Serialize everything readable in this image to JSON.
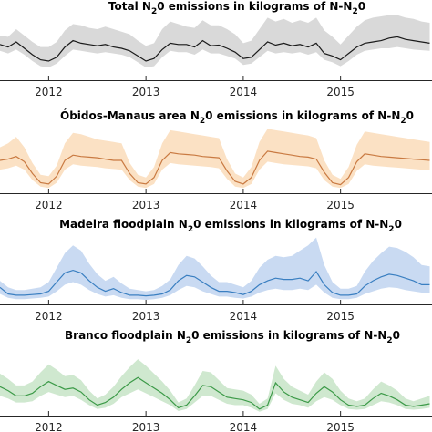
{
  "figure": {
    "panels": [
      {
        "title_pre": "Total N",
        "title_sub1": "2",
        "title_mid": "0 emissions in kilograms of N-N",
        "title_sub2": "2",
        "title_post": "0"
      },
      {
        "title_pre": "Óbidos-Manaus area N",
        "title_sub1": "2",
        "title_mid": "0 emissions in kilograms of N-N",
        "title_sub2": "2",
        "title_post": "0"
      },
      {
        "title_pre": "Madeira floodplain N",
        "title_sub1": "2",
        "title_mid": "0 emissions in kilograms of N-N",
        "title_sub2": "2",
        "title_post": "0"
      },
      {
        "title_pre": "Branco floodplain N",
        "title_sub1": "2",
        "title_mid": "0 emissions in kilograms of N-N",
        "title_sub2": "2",
        "title_post": "0"
      }
    ]
  },
  "chart_data": [
    {
      "type": "line",
      "title": "Total N20 emissions in kilograms of N-N20",
      "x_ticks": [
        "2012",
        "2013",
        "2014",
        "2015"
      ],
      "x": [
        2011.5,
        2011.583,
        2011.667,
        2011.75,
        2011.833,
        2011.917,
        2012.0,
        2012.083,
        2012.167,
        2012.25,
        2012.333,
        2012.417,
        2012.5,
        2012.583,
        2012.667,
        2012.75,
        2012.833,
        2012.917,
        2013.0,
        2013.083,
        2013.167,
        2013.25,
        2013.333,
        2013.417,
        2013.5,
        2013.583,
        2013.667,
        2013.75,
        2013.833,
        2013.917,
        2014.0,
        2014.083,
        2014.167,
        2014.25,
        2014.333,
        2014.417,
        2014.5,
        2014.583,
        2014.667,
        2014.75,
        2014.833,
        2014.917,
        2015.0,
        2015.083,
        2015.167,
        2015.25,
        2015.333,
        2015.417,
        2015.5,
        2015.583,
        2015.667,
        2015.75,
        2015.833,
        2015.917
      ],
      "ylim": [
        0,
        1
      ],
      "color": "#1a1a1a",
      "band_color": "#d9d9d9",
      "series": [
        {
          "mean": [
            0.56,
            0.52,
            0.6,
            0.5,
            0.4,
            0.32,
            0.3,
            0.36,
            0.52,
            0.62,
            0.58,
            0.56,
            0.54,
            0.56,
            0.52,
            0.5,
            0.46,
            0.38,
            0.3,
            0.34,
            0.48,
            0.58,
            0.56,
            0.56,
            0.52,
            0.62,
            0.54,
            0.55,
            0.5,
            0.44,
            0.34,
            0.36,
            0.48,
            0.6,
            0.55,
            0.58,
            0.54,
            0.56,
            0.52,
            0.58,
            0.42,
            0.38,
            0.32,
            0.42,
            0.52,
            0.58,
            0.6,
            0.62,
            0.66,
            0.68,
            0.64,
            0.62,
            0.6,
            0.58
          ],
          "lower": [
            0.46,
            0.42,
            0.48,
            0.4,
            0.3,
            0.22,
            0.2,
            0.26,
            0.38,
            0.48,
            0.46,
            0.44,
            0.42,
            0.44,
            0.42,
            0.4,
            0.36,
            0.28,
            0.2,
            0.22,
            0.36,
            0.46,
            0.44,
            0.44,
            0.4,
            0.48,
            0.42,
            0.42,
            0.38,
            0.34,
            0.24,
            0.26,
            0.36,
            0.46,
            0.42,
            0.44,
            0.42,
            0.44,
            0.4,
            0.44,
            0.32,
            0.28,
            0.22,
            0.3,
            0.4,
            0.46,
            0.48,
            0.5,
            0.5,
            0.52,
            0.5,
            0.48,
            0.47,
            0.46
          ],
          "upper": [
            0.7,
            0.68,
            0.8,
            0.7,
            0.6,
            0.52,
            0.52,
            0.6,
            0.78,
            0.88,
            0.86,
            0.82,
            0.8,
            0.84,
            0.8,
            0.76,
            0.72,
            0.62,
            0.54,
            0.58,
            0.8,
            0.92,
            0.88,
            0.84,
            0.82,
            0.94,
            0.86,
            0.86,
            0.8,
            0.72,
            0.58,
            0.62,
            0.8,
            0.98,
            0.92,
            0.96,
            0.9,
            0.94,
            0.9,
            0.98,
            0.78,
            0.68,
            0.56,
            0.7,
            0.84,
            0.94,
            0.98,
            1.0,
            1.02,
            1.02,
            0.98,
            0.96,
            0.92,
            0.9
          ]
        }
      ]
    },
    {
      "type": "line",
      "title": "Óbidos-Manaus area N20 emissions in kilograms of N-N20",
      "x_ticks": [
        "2012",
        "2013",
        "2014",
        "2015"
      ],
      "x": [
        2011.5,
        2011.583,
        2011.667,
        2011.75,
        2011.833,
        2011.917,
        2012.0,
        2012.083,
        2012.167,
        2012.25,
        2012.333,
        2012.417,
        2012.5,
        2012.583,
        2012.667,
        2012.75,
        2012.833,
        2012.917,
        2013.0,
        2013.083,
        2013.167,
        2013.25,
        2013.333,
        2013.417,
        2013.5,
        2013.583,
        2013.667,
        2013.75,
        2013.833,
        2013.917,
        2014.0,
        2014.083,
        2014.167,
        2014.25,
        2014.333,
        2014.417,
        2014.5,
        2014.583,
        2014.667,
        2014.75,
        2014.833,
        2014.917,
        2015.0,
        2015.083,
        2015.167,
        2015.25,
        2015.333,
        2015.417,
        2015.5,
        2015.583,
        2015.667,
        2015.75,
        2015.833,
        2015.917
      ],
      "ylim": [
        0,
        1
      ],
      "color": "#c97a42",
      "band_color": "#fbe1c4",
      "series": [
        {
          "mean": [
            0.5,
            0.52,
            0.56,
            0.48,
            0.3,
            0.16,
            0.14,
            0.26,
            0.5,
            0.58,
            0.56,
            0.55,
            0.54,
            0.52,
            0.5,
            0.5,
            0.3,
            0.16,
            0.14,
            0.24,
            0.5,
            0.62,
            0.6,
            0.59,
            0.58,
            0.56,
            0.55,
            0.54,
            0.34,
            0.18,
            0.14,
            0.24,
            0.5,
            0.64,
            0.62,
            0.6,
            0.58,
            0.56,
            0.55,
            0.52,
            0.32,
            0.16,
            0.13,
            0.24,
            0.48,
            0.6,
            0.58,
            0.56,
            0.55,
            0.54,
            0.53,
            0.52,
            0.51,
            0.5
          ],
          "lower": [
            0.36,
            0.38,
            0.42,
            0.36,
            0.2,
            0.1,
            0.08,
            0.16,
            0.36,
            0.44,
            0.42,
            0.41,
            0.4,
            0.38,
            0.37,
            0.36,
            0.2,
            0.1,
            0.08,
            0.14,
            0.36,
            0.46,
            0.44,
            0.43,
            0.42,
            0.41,
            0.4,
            0.38,
            0.22,
            0.1,
            0.08,
            0.14,
            0.36,
            0.48,
            0.46,
            0.44,
            0.43,
            0.42,
            0.41,
            0.38,
            0.2,
            0.1,
            0.08,
            0.14,
            0.34,
            0.44,
            0.42,
            0.41,
            0.4,
            0.39,
            0.38,
            0.37,
            0.36,
            0.35
          ],
          "upper": [
            0.7,
            0.76,
            0.86,
            0.7,
            0.46,
            0.28,
            0.26,
            0.42,
            0.76,
            0.92,
            0.9,
            0.86,
            0.82,
            0.8,
            0.78,
            0.76,
            0.46,
            0.28,
            0.24,
            0.4,
            0.76,
            0.96,
            0.94,
            0.92,
            0.9,
            0.88,
            0.86,
            0.84,
            0.52,
            0.3,
            0.24,
            0.4,
            0.78,
            0.98,
            0.96,
            0.94,
            0.92,
            0.9,
            0.88,
            0.84,
            0.5,
            0.28,
            0.22,
            0.4,
            0.74,
            0.94,
            0.92,
            0.9,
            0.88,
            0.86,
            0.84,
            0.82,
            0.8,
            0.78
          ]
        }
      ]
    },
    {
      "type": "line",
      "title": "Madeira floodplain N20 emissions in kilograms of N-N20",
      "x_ticks": [
        "2012",
        "2013",
        "2014",
        "2015"
      ],
      "x": [
        2011.5,
        2011.583,
        2011.667,
        2011.75,
        2011.833,
        2011.917,
        2012.0,
        2012.083,
        2012.167,
        2012.25,
        2012.333,
        2012.417,
        2012.5,
        2012.583,
        2012.667,
        2012.75,
        2012.833,
        2012.917,
        2013.0,
        2013.083,
        2013.167,
        2013.25,
        2013.333,
        2013.417,
        2013.5,
        2013.583,
        2013.667,
        2013.75,
        2013.833,
        2013.917,
        2014.0,
        2014.083,
        2014.167,
        2014.25,
        2014.333,
        2014.417,
        2014.5,
        2014.583,
        2014.667,
        2014.75,
        2014.833,
        2014.917,
        2015.0,
        2015.083,
        2015.167,
        2015.25,
        2015.333,
        2015.417,
        2015.5,
        2015.583,
        2015.667,
        2015.75,
        2015.833,
        2015.917
      ],
      "ylim": [
        0,
        1
      ],
      "color": "#3a7fc1",
      "band_color": "#c9daf2",
      "series": [
        {
          "mean": [
            0.26,
            0.16,
            0.14,
            0.14,
            0.15,
            0.16,
            0.2,
            0.34,
            0.48,
            0.52,
            0.48,
            0.36,
            0.26,
            0.2,
            0.24,
            0.18,
            0.14,
            0.14,
            0.13,
            0.14,
            0.16,
            0.22,
            0.36,
            0.44,
            0.42,
            0.34,
            0.26,
            0.2,
            0.2,
            0.18,
            0.15,
            0.2,
            0.3,
            0.36,
            0.4,
            0.38,
            0.38,
            0.4,
            0.36,
            0.5,
            0.3,
            0.18,
            0.14,
            0.14,
            0.16,
            0.28,
            0.36,
            0.42,
            0.46,
            0.44,
            0.4,
            0.36,
            0.3,
            0.3
          ],
          "lower": [
            0.16,
            0.1,
            0.08,
            0.08,
            0.09,
            0.1,
            0.12,
            0.2,
            0.3,
            0.34,
            0.3,
            0.22,
            0.16,
            0.12,
            0.14,
            0.1,
            0.08,
            0.08,
            0.07,
            0.08,
            0.1,
            0.14,
            0.22,
            0.28,
            0.26,
            0.2,
            0.16,
            0.12,
            0.12,
            0.1,
            0.09,
            0.12,
            0.18,
            0.22,
            0.24,
            0.22,
            0.22,
            0.24,
            0.22,
            0.3,
            0.18,
            0.1,
            0.08,
            0.08,
            0.1,
            0.16,
            0.2,
            0.24,
            0.26,
            0.25,
            0.22,
            0.2,
            0.18,
            0.18
          ],
          "upper": [
            0.36,
            0.26,
            0.22,
            0.22,
            0.24,
            0.26,
            0.34,
            0.56,
            0.78,
            0.9,
            0.82,
            0.62,
            0.46,
            0.36,
            0.42,
            0.32,
            0.24,
            0.22,
            0.2,
            0.22,
            0.28,
            0.38,
            0.6,
            0.74,
            0.7,
            0.58,
            0.44,
            0.34,
            0.34,
            0.3,
            0.26,
            0.36,
            0.56,
            0.68,
            0.74,
            0.72,
            0.74,
            0.82,
            0.9,
            1.02,
            0.6,
            0.34,
            0.24,
            0.24,
            0.28,
            0.5,
            0.66,
            0.78,
            0.88,
            0.86,
            0.8,
            0.72,
            0.6,
            0.58
          ]
        }
      ]
    },
    {
      "type": "line",
      "title": "Branco floodplain N20 emissions in kilograms of N-N20",
      "x_ticks": [
        "2012",
        "2013",
        "2014",
        "2015"
      ],
      "x": [
        2011.5,
        2011.583,
        2011.667,
        2011.75,
        2011.833,
        2011.917,
        2012.0,
        2012.083,
        2012.167,
        2012.25,
        2012.333,
        2012.417,
        2012.5,
        2012.583,
        2012.667,
        2012.75,
        2012.833,
        2012.917,
        2013.0,
        2013.083,
        2013.167,
        2013.25,
        2013.333,
        2013.417,
        2013.5,
        2013.583,
        2013.667,
        2013.75,
        2013.833,
        2013.917,
        2014.0,
        2014.083,
        2014.167,
        2014.25,
        2014.333,
        2014.417,
        2014.5,
        2014.583,
        2014.667,
        2014.75,
        2014.833,
        2014.917,
        2015.0,
        2015.083,
        2015.167,
        2015.25,
        2015.333,
        2015.417,
        2015.5,
        2015.583,
        2015.667,
        2015.75,
        2015.833,
        2015.917
      ],
      "ylim": [
        0,
        1
      ],
      "color": "#3c9a48",
      "band_color": "#cfe8cf",
      "series": [
        {
          "mean": [
            0.44,
            0.38,
            0.3,
            0.3,
            0.34,
            0.44,
            0.52,
            0.46,
            0.4,
            0.42,
            0.36,
            0.24,
            0.16,
            0.2,
            0.28,
            0.4,
            0.5,
            0.58,
            0.5,
            0.42,
            0.34,
            0.24,
            0.12,
            0.16,
            0.3,
            0.46,
            0.44,
            0.36,
            0.28,
            0.26,
            0.24,
            0.2,
            0.1,
            0.16,
            0.5,
            0.36,
            0.28,
            0.24,
            0.2,
            0.34,
            0.44,
            0.36,
            0.24,
            0.16,
            0.14,
            0.16,
            0.26,
            0.34,
            0.3,
            0.24,
            0.16,
            0.14,
            0.16,
            0.18
          ],
          "lower": [
            0.3,
            0.26,
            0.2,
            0.2,
            0.22,
            0.3,
            0.36,
            0.32,
            0.28,
            0.3,
            0.24,
            0.16,
            0.1,
            0.12,
            0.18,
            0.28,
            0.34,
            0.4,
            0.34,
            0.28,
            0.22,
            0.16,
            0.07,
            0.1,
            0.2,
            0.3,
            0.3,
            0.24,
            0.18,
            0.16,
            0.16,
            0.12,
            0.06,
            0.1,
            0.34,
            0.24,
            0.18,
            0.16,
            0.12,
            0.22,
            0.28,
            0.24,
            0.16,
            0.1,
            0.09,
            0.1,
            0.16,
            0.22,
            0.2,
            0.16,
            0.1,
            0.09,
            0.1,
            0.12
          ],
          "upper": [
            0.64,
            0.56,
            0.46,
            0.46,
            0.52,
            0.66,
            0.78,
            0.7,
            0.6,
            0.62,
            0.54,
            0.38,
            0.26,
            0.32,
            0.44,
            0.6,
            0.74,
            0.86,
            0.76,
            0.64,
            0.52,
            0.38,
            0.2,
            0.26,
            0.46,
            0.68,
            0.66,
            0.54,
            0.42,
            0.4,
            0.38,
            0.32,
            0.18,
            0.26,
            0.76,
            0.56,
            0.44,
            0.38,
            0.32,
            0.52,
            0.66,
            0.56,
            0.38,
            0.26,
            0.22,
            0.26,
            0.4,
            0.52,
            0.46,
            0.38,
            0.26,
            0.22,
            0.26,
            0.3
          ]
        }
      ]
    }
  ]
}
